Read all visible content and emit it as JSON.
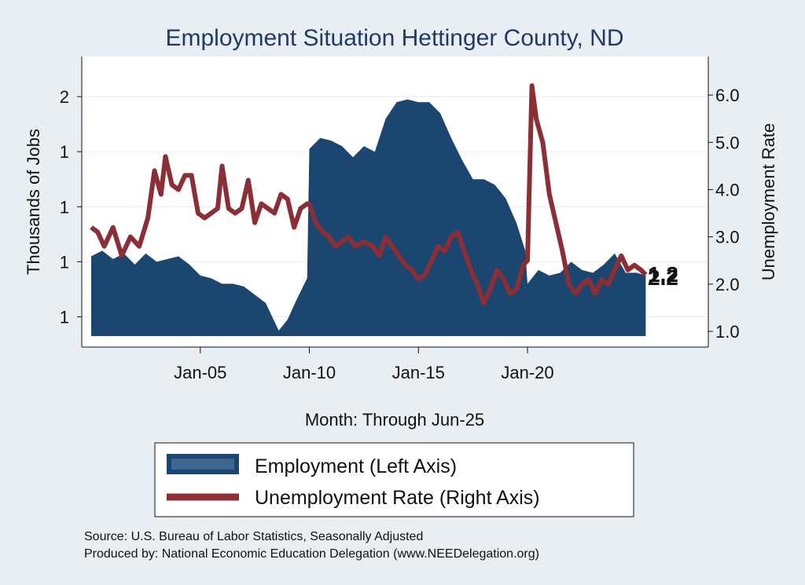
{
  "chart_data": {
    "type": "bar+line",
    "title": "Employment Situation Hettinger  County, ND",
    "xlabel": "Month: Through Jun-25",
    "ylabel_left": "Thousands of Jobs",
    "ylabel_right": "Unemployment Rate",
    "x_ticks": [
      "Jan-05",
      "Jan-10",
      "Jan-15",
      "Jan-20"
    ],
    "y_left_ticks": [
      "1",
      "1",
      "1",
      "1",
      "2"
    ],
    "y_left_tick_values": [
      1.1,
      1.3,
      1.5,
      1.7,
      1.9
    ],
    "y_left_range": [
      1.03,
      2.0
    ],
    "y_right_ticks": [
      "1.0",
      "2.0",
      "3.0",
      "4.0",
      "5.0",
      "6.0"
    ],
    "y_right_tick_values": [
      1.0,
      2.0,
      3.0,
      4.0,
      5.0,
      6.0
    ],
    "y_right_range": [
      0.9,
      6.55
    ],
    "x_range": [
      2000.0,
      2028.0
    ],
    "grid": true,
    "legend_position": "bottom",
    "employment": {
      "name": "Employment (Left Axis)",
      "color": "#1a4670",
      "points": [
        [
          2000.0,
          1.32
        ],
        [
          2000.5,
          1.34
        ],
        [
          2001.0,
          1.31
        ],
        [
          2001.5,
          1.33
        ],
        [
          2002.0,
          1.29
        ],
        [
          2002.5,
          1.33
        ],
        [
          2003.0,
          1.3
        ],
        [
          2003.5,
          1.31
        ],
        [
          2004.0,
          1.32
        ],
        [
          2004.5,
          1.29
        ],
        [
          2005.0,
          1.25
        ],
        [
          2005.5,
          1.24
        ],
        [
          2006.0,
          1.22
        ],
        [
          2006.5,
          1.22
        ],
        [
          2007.0,
          1.21
        ],
        [
          2007.5,
          1.18
        ],
        [
          2008.0,
          1.15
        ],
        [
          2008.3,
          1.1
        ],
        [
          2008.6,
          1.05
        ],
        [
          2009.0,
          1.09
        ],
        [
          2009.4,
          1.16
        ],
        [
          2009.9,
          1.24
        ],
        [
          2010.0,
          1.71
        ],
        [
          2010.5,
          1.75
        ],
        [
          2011.0,
          1.74
        ],
        [
          2011.5,
          1.72
        ],
        [
          2012.0,
          1.68
        ],
        [
          2012.5,
          1.72
        ],
        [
          2013.0,
          1.7
        ],
        [
          2013.5,
          1.82
        ],
        [
          2014.0,
          1.88
        ],
        [
          2014.5,
          1.89
        ],
        [
          2015.0,
          1.88
        ],
        [
          2015.5,
          1.88
        ],
        [
          2016.0,
          1.84
        ],
        [
          2016.5,
          1.75
        ],
        [
          2017.0,
          1.67
        ],
        [
          2017.5,
          1.6
        ],
        [
          2018.0,
          1.6
        ],
        [
          2018.5,
          1.58
        ],
        [
          2019.0,
          1.53
        ],
        [
          2019.5,
          1.44
        ],
        [
          2019.9,
          1.34
        ],
        [
          2020.0,
          1.22
        ],
        [
          2020.5,
          1.27
        ],
        [
          2021.0,
          1.25
        ],
        [
          2021.5,
          1.26
        ],
        [
          2022.0,
          1.3
        ],
        [
          2022.5,
          1.27
        ],
        [
          2023.0,
          1.26
        ],
        [
          2023.5,
          1.29
        ],
        [
          2024.0,
          1.33
        ],
        [
          2024.5,
          1.26
        ],
        [
          2025.0,
          1.26
        ],
        [
          2025.42,
          1.25
        ]
      ]
    },
    "unemployment": {
      "name": "Unemployment Rate (Right Axis)",
      "color": "#8b2e35",
      "points": [
        [
          2000.0,
          3.2
        ],
        [
          2000.3,
          3.1
        ],
        [
          2000.6,
          2.8
        ],
        [
          2001.0,
          3.2
        ],
        [
          2001.4,
          2.6
        ],
        [
          2001.8,
          3.0
        ],
        [
          2002.2,
          2.8
        ],
        [
          2002.6,
          3.4
        ],
        [
          2002.9,
          4.4
        ],
        [
          2003.2,
          3.9
        ],
        [
          2003.4,
          4.7
        ],
        [
          2003.7,
          4.1
        ],
        [
          2004.0,
          4.0
        ],
        [
          2004.3,
          4.3
        ],
        [
          2004.6,
          4.3
        ],
        [
          2004.9,
          3.5
        ],
        [
          2005.2,
          3.4
        ],
        [
          2005.5,
          3.5
        ],
        [
          2005.8,
          3.6
        ],
        [
          2006.0,
          4.5
        ],
        [
          2006.3,
          3.6
        ],
        [
          2006.6,
          3.5
        ],
        [
          2006.9,
          3.6
        ],
        [
          2007.2,
          4.2
        ],
        [
          2007.5,
          3.3
        ],
        [
          2007.8,
          3.7
        ],
        [
          2008.1,
          3.6
        ],
        [
          2008.4,
          3.5
        ],
        [
          2008.7,
          3.9
        ],
        [
          2009.0,
          3.8
        ],
        [
          2009.3,
          3.2
        ],
        [
          2009.6,
          3.6
        ],
        [
          2009.9,
          3.7
        ],
        [
          2010.0,
          3.7
        ],
        [
          2010.3,
          3.3
        ],
        [
          2010.6,
          3.1
        ],
        [
          2010.9,
          3.0
        ],
        [
          2011.2,
          2.8
        ],
        [
          2011.5,
          2.9
        ],
        [
          2011.8,
          3.0
        ],
        [
          2012.1,
          2.8
        ],
        [
          2012.5,
          2.9
        ],
        [
          2012.9,
          2.8
        ],
        [
          2013.2,
          2.6
        ],
        [
          2013.5,
          3.0
        ],
        [
          2013.8,
          2.8
        ],
        [
          2014.1,
          2.6
        ],
        [
          2014.4,
          2.4
        ],
        [
          2014.7,
          2.3
        ],
        [
          2015.0,
          2.1
        ],
        [
          2015.3,
          2.2
        ],
        [
          2015.6,
          2.5
        ],
        [
          2015.9,
          2.8
        ],
        [
          2016.2,
          2.7
        ],
        [
          2016.5,
          3.0
        ],
        [
          2016.8,
          3.1
        ],
        [
          2017.1,
          2.7
        ],
        [
          2017.4,
          2.3
        ],
        [
          2017.7,
          2.0
        ],
        [
          2018.0,
          1.6
        ],
        [
          2018.3,
          1.9
        ],
        [
          2018.6,
          2.3
        ],
        [
          2018.9,
          2.1
        ],
        [
          2019.2,
          1.8
        ],
        [
          2019.5,
          1.9
        ],
        [
          2019.8,
          2.4
        ],
        [
          2020.0,
          2.5
        ],
        [
          2020.2,
          6.2
        ],
        [
          2020.4,
          5.5
        ],
        [
          2020.7,
          5.0
        ],
        [
          2021.0,
          3.9
        ],
        [
          2021.3,
          3.3
        ],
        [
          2021.6,
          2.7
        ],
        [
          2021.9,
          2.0
        ],
        [
          2022.2,
          1.8
        ],
        [
          2022.5,
          2.0
        ],
        [
          2022.8,
          2.1
        ],
        [
          2023.1,
          1.8
        ],
        [
          2023.4,
          2.1
        ],
        [
          2023.7,
          2.0
        ],
        [
          2024.0,
          2.3
        ],
        [
          2024.3,
          2.6
        ],
        [
          2024.6,
          2.3
        ],
        [
          2024.9,
          2.4
        ],
        [
          2025.2,
          2.3
        ],
        [
          2025.42,
          2.2
        ]
      ]
    },
    "end_labels": [
      "1.2",
      "2.2"
    ]
  },
  "source": {
    "line1": "Source: U.S. Bureau of Labor Statistics, Seasonally Adjusted",
    "line2": "Produced by: National Economic Education Delegation (www.NEEDelegation.org)"
  }
}
